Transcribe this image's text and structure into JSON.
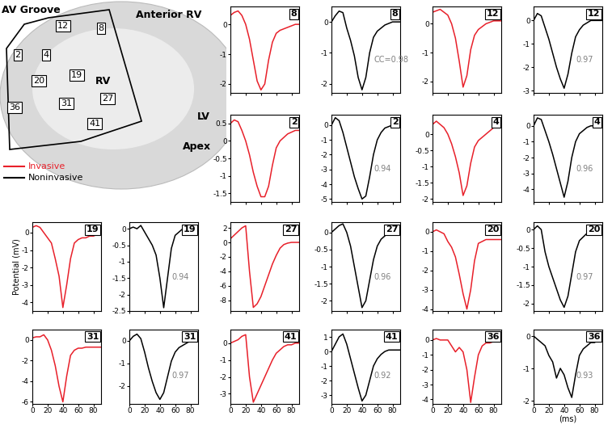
{
  "diagram": {
    "labels": [
      "AV Groove",
      "Anterior RV",
      "RV",
      "LV",
      "Apex"
    ],
    "electrodes": [
      "12",
      "8",
      "2",
      "4",
      "20",
      "19",
      "36",
      "31",
      "27",
      "41"
    ],
    "legend": [
      {
        "name": "Invasive",
        "color": "#e8202a"
      },
      {
        "name": "Noninvasive",
        "color": "#000000"
      }
    ]
  },
  "chart_data": [
    {
      "type": "line",
      "title": "8",
      "color": "#e8202a",
      "tick_labels": "y",
      "xlim": [
        0,
        90
      ],
      "xticks": [
        0,
        20,
        40,
        60,
        80
      ],
      "ylim": [
        -2.3,
        0.6
      ],
      "yticks": [
        0,
        -1,
        -2
      ],
      "x": [
        0,
        5,
        10,
        15,
        20,
        25,
        30,
        35,
        40,
        45,
        50,
        55,
        60,
        65,
        70,
        75,
        80,
        85,
        90
      ],
      "values": [
        0.3,
        0.4,
        0.45,
        0.3,
        0.0,
        -0.5,
        -1.2,
        -1.9,
        -2.2,
        -2.0,
        -1.2,
        -0.6,
        -0.3,
        -0.2,
        -0.15,
        -0.1,
        -0.05,
        0.0,
        0.0
      ]
    },
    {
      "type": "line",
      "title": "8",
      "color": "#000000",
      "tick_labels": "y",
      "annotation": "CC=0.98",
      "xlim": [
        0,
        90
      ],
      "xticks": [
        0,
        20,
        40,
        60,
        80
      ],
      "ylim": [
        -2.3,
        0.5
      ],
      "yticks": [
        0,
        -1,
        -2
      ],
      "x": [
        0,
        5,
        10,
        15,
        20,
        25,
        30,
        35,
        40,
        45,
        50,
        55,
        60,
        65,
        70,
        75,
        80,
        85,
        90
      ],
      "values": [
        0.0,
        0.2,
        0.35,
        0.3,
        -0.2,
        -0.6,
        -1.1,
        -1.8,
        -2.2,
        -1.8,
        -1.0,
        -0.5,
        -0.3,
        -0.2,
        -0.1,
        -0.05,
        0.0,
        0.0,
        0.0
      ]
    },
    {
      "type": "line",
      "title": "12",
      "color": "#e8202a",
      "tick_labels": "y",
      "xlim": [
        0,
        90
      ],
      "xticks": [
        0,
        20,
        40,
        60,
        80
      ],
      "ylim": [
        -2.4,
        0.6
      ],
      "yticks": [
        0,
        -1,
        -2
      ],
      "x": [
        0,
        5,
        10,
        15,
        20,
        25,
        30,
        35,
        40,
        45,
        50,
        55,
        60,
        65,
        70,
        75,
        80,
        85,
        90
      ],
      "values": [
        0.4,
        0.45,
        0.5,
        0.4,
        0.3,
        0.0,
        -0.5,
        -1.3,
        -2.2,
        -1.8,
        -0.9,
        -0.4,
        -0.2,
        -0.1,
        0.0,
        0.05,
        0.1,
        0.1,
        0.1
      ]
    },
    {
      "type": "line",
      "title": "12",
      "color": "#000000",
      "tick_labels": "y",
      "annotation": "0.97",
      "xlim": [
        0,
        90
      ],
      "xticks": [
        0,
        20,
        40,
        60,
        80
      ],
      "ylim": [
        -3.1,
        0.6
      ],
      "yticks": [
        0,
        -1,
        -2,
        -3
      ],
      "x": [
        0,
        5,
        10,
        15,
        20,
        25,
        30,
        35,
        40,
        45,
        50,
        55,
        60,
        65,
        70,
        75,
        80,
        85,
        90
      ],
      "values": [
        0.0,
        0.3,
        0.2,
        -0.3,
        -0.8,
        -1.4,
        -2.0,
        -2.5,
        -2.9,
        -2.3,
        -1.4,
        -0.7,
        -0.4,
        -0.2,
        -0.1,
        0.0,
        0.0,
        0.0,
        0.0
      ]
    },
    {
      "type": "line",
      "title": "2",
      "color": "#e8202a",
      "tick_labels": "y",
      "xlim": [
        0,
        90
      ],
      "xticks": [
        0,
        20,
        40,
        60,
        80
      ],
      "ylim": [
        -1.75,
        0.75
      ],
      "yticks": [
        0.5,
        0,
        -0.5,
        -1,
        -1.5
      ],
      "x": [
        0,
        5,
        10,
        15,
        20,
        25,
        30,
        35,
        40,
        45,
        50,
        55,
        60,
        65,
        70,
        75,
        80,
        85,
        90
      ],
      "values": [
        0.5,
        0.6,
        0.55,
        0.3,
        0.0,
        -0.4,
        -0.9,
        -1.3,
        -1.6,
        -1.6,
        -1.3,
        -0.7,
        -0.2,
        0.0,
        0.1,
        0.2,
        0.25,
        0.3,
        0.3
      ]
    },
    {
      "type": "line",
      "title": "2",
      "color": "#000000",
      "tick_labels": "y",
      "annotation": "0.94",
      "xlim": [
        0,
        90
      ],
      "xticks": [
        0,
        20,
        40,
        60,
        80
      ],
      "ylim": [
        -5.2,
        0.7
      ],
      "yticks": [
        0,
        -1,
        -2,
        -3,
        -4,
        -5
      ],
      "x": [
        0,
        5,
        10,
        15,
        20,
        25,
        30,
        35,
        40,
        45,
        50,
        55,
        60,
        65,
        70,
        75,
        80,
        85,
        90
      ],
      "values": [
        0.0,
        0.5,
        0.3,
        -0.5,
        -1.5,
        -2.5,
        -3.5,
        -4.3,
        -5.0,
        -4.8,
        -3.5,
        -2.0,
        -1.0,
        -0.5,
        -0.2,
        -0.1,
        0.0,
        0.0,
        0.0
      ]
    },
    {
      "type": "line",
      "title": "4",
      "color": "#e8202a",
      "tick_labels": "y",
      "xlim": [
        0,
        90
      ],
      "xticks": [
        0,
        20,
        40,
        60,
        80
      ],
      "ylim": [
        -2.1,
        0.6
      ],
      "yticks": [
        0,
        -0.5,
        -1,
        -1.5,
        -2
      ],
      "x": [
        0,
        5,
        10,
        15,
        20,
        25,
        30,
        35,
        40,
        45,
        50,
        55,
        60,
        65,
        70,
        75,
        80,
        85,
        90
      ],
      "values": [
        0.3,
        0.4,
        0.3,
        0.2,
        0.0,
        -0.3,
        -0.7,
        -1.2,
        -1.9,
        -1.6,
        -0.9,
        -0.4,
        -0.2,
        -0.1,
        0.0,
        0.1,
        0.2,
        0.3,
        0.3
      ]
    },
    {
      "type": "line",
      "title": "4",
      "color": "#000000",
      "tick_labels": "y",
      "annotation": "0.96",
      "xlim": [
        0,
        90
      ],
      "xticks": [
        0,
        20,
        40,
        60,
        80
      ],
      "ylim": [
        -4.8,
        0.7
      ],
      "yticks": [
        0,
        -1,
        -2,
        -3,
        -4
      ],
      "x": [
        0,
        5,
        10,
        15,
        20,
        25,
        30,
        35,
        40,
        45,
        50,
        55,
        60,
        65,
        70,
        75,
        80,
        85,
        90
      ],
      "values": [
        0.0,
        0.5,
        0.4,
        -0.3,
        -1.0,
        -1.8,
        -2.7,
        -3.6,
        -4.5,
        -3.5,
        -2.0,
        -1.0,
        -0.5,
        -0.3,
        -0.1,
        0.0,
        0.0,
        0.0,
        0.0
      ]
    },
    {
      "type": "line",
      "title": "19",
      "color": "#e8202a",
      "tick_labels": "y",
      "ylabel": "Potential (mV)",
      "xlim": [
        0,
        90
      ],
      "xticks": [
        0,
        20,
        40,
        60,
        80
      ],
      "ylim": [
        -4.5,
        0.6
      ],
      "yticks": [
        0,
        -1,
        -2,
        -3,
        -4
      ],
      "x": [
        0,
        5,
        10,
        15,
        20,
        25,
        30,
        35,
        40,
        45,
        50,
        55,
        60,
        65,
        70,
        75,
        80,
        85,
        90
      ],
      "values": [
        0.3,
        0.4,
        0.3,
        0.0,
        -0.3,
        -0.6,
        -1.5,
        -2.5,
        -4.3,
        -3.0,
        -1.5,
        -0.6,
        -0.4,
        -0.3,
        -0.3,
        -0.2,
        -0.2,
        -0.1,
        -0.1
      ]
    },
    {
      "type": "line",
      "title": "19",
      "color": "#000000",
      "tick_labels": "y",
      "annotation": "0.94",
      "xlim": [
        0,
        90
      ],
      "xticks": [
        0,
        20,
        40,
        60,
        80
      ],
      "ylim": [
        -2.5,
        0.2
      ],
      "yticks": [
        0,
        -0.5,
        -1,
        -1.5,
        -2,
        -2.5
      ],
      "x": [
        0,
        5,
        10,
        15,
        20,
        25,
        30,
        35,
        40,
        45,
        50,
        55,
        60,
        65,
        70,
        75,
        80,
        85,
        90
      ],
      "values": [
        0.0,
        0.05,
        0.0,
        0.1,
        -0.1,
        -0.3,
        -0.5,
        -0.8,
        -1.5,
        -2.4,
        -1.5,
        -0.6,
        -0.2,
        -0.1,
        0.0,
        0.0,
        0.0,
        0.0,
        0.0
      ]
    },
    {
      "type": "line",
      "title": "27",
      "color": "#e8202a",
      "tick_labels": "y",
      "xlim": [
        0,
        90
      ],
      "xticks": [
        0,
        20,
        40,
        60,
        80
      ],
      "ylim": [
        -9.5,
        2.8
      ],
      "yticks": [
        2,
        0,
        -2,
        -4,
        -6,
        -8
      ],
      "x": [
        0,
        5,
        10,
        15,
        20,
        25,
        30,
        35,
        40,
        45,
        50,
        55,
        60,
        65,
        70,
        75,
        80,
        85,
        90
      ],
      "values": [
        0.5,
        1.0,
        1.5,
        2.0,
        2.3,
        -4.0,
        -9.0,
        -8.5,
        -7.5,
        -6.0,
        -4.5,
        -3.0,
        -1.8,
        -0.8,
        -0.3,
        -0.1,
        0.0,
        0.0,
        0.0
      ]
    },
    {
      "type": "line",
      "title": "27",
      "color": "#000000",
      "tick_labels": "y",
      "annotation": "0.96",
      "xlim": [
        0,
        90
      ],
      "xticks": [
        0,
        20,
        40,
        60,
        80
      ],
      "ylim": [
        -2.3,
        0.3
      ],
      "yticks": [
        0,
        -0.5,
        -1,
        -1.5,
        -2
      ],
      "x": [
        0,
        5,
        10,
        15,
        20,
        25,
        30,
        35,
        40,
        45,
        50,
        55,
        60,
        65,
        70,
        75,
        80,
        85,
        90
      ],
      "values": [
        0.0,
        0.1,
        0.2,
        0.25,
        0.0,
        -0.4,
        -1.0,
        -1.6,
        -2.2,
        -2.0,
        -1.4,
        -0.8,
        -0.4,
        -0.2,
        -0.1,
        0.0,
        0.0,
        0.0,
        0.0
      ]
    },
    {
      "type": "line",
      "title": "20",
      "color": "#e8202a",
      "tick_labels": "y",
      "xlim": [
        0,
        90
      ],
      "xticks": [
        0,
        20,
        40,
        60,
        80
      ],
      "ylim": [
        -4.1,
        0.5
      ],
      "yticks": [
        0,
        -1,
        -2,
        -3,
        -4
      ],
      "x": [
        0,
        5,
        10,
        15,
        20,
        25,
        30,
        35,
        40,
        45,
        50,
        55,
        60,
        65,
        70,
        75,
        80,
        85,
        90
      ],
      "values": [
        0.0,
        0.1,
        0.0,
        -0.1,
        -0.5,
        -0.8,
        -1.3,
        -2.2,
        -3.2,
        -4.0,
        -3.0,
        -1.5,
        -0.6,
        -0.5,
        -0.4,
        -0.4,
        -0.4,
        -0.4,
        -0.4
      ]
    },
    {
      "type": "line",
      "title": "20",
      "color": "#000000",
      "tick_labels": "y",
      "annotation": "0.97",
      "xlim": [
        0,
        90
      ],
      "xticks": [
        0,
        20,
        40,
        60,
        80
      ],
      "ylim": [
        -2.2,
        0.2
      ],
      "yticks": [
        0,
        -0.5,
        -1,
        -1.5,
        -2
      ],
      "x": [
        0,
        5,
        10,
        15,
        20,
        25,
        30,
        35,
        40,
        45,
        50,
        55,
        60,
        65,
        70,
        75,
        80,
        85,
        90
      ],
      "values": [
        0.0,
        0.1,
        0.0,
        -0.6,
        -1.0,
        -1.3,
        -1.6,
        -1.9,
        -2.1,
        -1.8,
        -1.2,
        -0.6,
        -0.3,
        -0.2,
        -0.1,
        -0.05,
        0.0,
        0.0,
        0.0
      ]
    },
    {
      "type": "line",
      "title": "31",
      "color": "#e8202a",
      "tick_labels": true,
      "xlim": [
        0,
        90
      ],
      "xticks": [
        0,
        20,
        40,
        60,
        80
      ],
      "ylim": [
        -6.2,
        1
      ],
      "yticks": [
        0,
        -2,
        -4,
        -6
      ],
      "x": [
        0,
        5,
        10,
        15,
        20,
        25,
        30,
        35,
        40,
        45,
        50,
        55,
        60,
        65,
        70,
        75,
        80,
        85,
        90
      ],
      "values": [
        0.2,
        0.3,
        0.3,
        0.5,
        0.0,
        -1.0,
        -2.5,
        -4.5,
        -6.0,
        -3.5,
        -1.5,
        -1.0,
        -0.8,
        -0.8,
        -0.7,
        -0.7,
        -0.7,
        -0.7,
        -0.7
      ]
    },
    {
      "type": "line",
      "title": "31",
      "color": "#000000",
      "tick_labels": true,
      "annotation": "0.97",
      "xlim": [
        0,
        90
      ],
      "xticks": [
        0,
        20,
        40,
        60,
        80
      ],
      "ylim": [
        -2.8,
        0.5
      ],
      "yticks": [
        0,
        -1,
        -2
      ],
      "x": [
        0,
        5,
        10,
        15,
        20,
        25,
        30,
        35,
        40,
        45,
        50,
        55,
        60,
        65,
        70,
        75,
        80,
        85,
        90
      ],
      "values": [
        0.0,
        0.2,
        0.3,
        0.1,
        -0.5,
        -1.2,
        -1.8,
        -2.3,
        -2.6,
        -2.3,
        -1.6,
        -0.9,
        -0.5,
        -0.3,
        -0.2,
        -0.1,
        0.0,
        0.0,
        0.0
      ]
    },
    {
      "type": "line",
      "title": "41",
      "color": "#e8202a",
      "tick_labels": true,
      "xlim": [
        0,
        90
      ],
      "xticks": [
        0,
        20,
        40,
        60,
        80
      ],
      "ylim": [
        -3.6,
        0.8
      ],
      "yticks": [
        0,
        -1,
        -2,
        -3
      ],
      "x": [
        0,
        5,
        10,
        15,
        20,
        25,
        30,
        35,
        40,
        45,
        50,
        55,
        60,
        65,
        70,
        75,
        80,
        85,
        90
      ],
      "values": [
        0.0,
        0.1,
        0.2,
        0.4,
        0.5,
        -2.0,
        -3.5,
        -3.0,
        -2.5,
        -2.0,
        -1.5,
        -1.0,
        -0.6,
        -0.4,
        -0.2,
        -0.1,
        -0.1,
        0.0,
        0.0
      ]
    },
    {
      "type": "line",
      "title": "41",
      "color": "#000000",
      "tick_labels": true,
      "annotation": "0.92",
      "xlim": [
        0,
        90
      ],
      "xticks": [
        0,
        20,
        40,
        60,
        80
      ],
      "ylim": [
        -3.6,
        1.5
      ],
      "yticks": [
        1,
        0,
        -1,
        -2,
        -3
      ],
      "x": [
        0,
        5,
        10,
        15,
        20,
        25,
        30,
        35,
        40,
        45,
        50,
        55,
        60,
        65,
        70,
        75,
        80,
        85,
        90
      ],
      "values": [
        0.0,
        0.5,
        1.0,
        1.2,
        0.5,
        -0.5,
        -1.5,
        -2.5,
        -3.4,
        -3.0,
        -2.0,
        -1.0,
        -0.5,
        -0.2,
        0.0,
        0.1,
        0.1,
        0.1,
        0.1
      ]
    },
    {
      "type": "line",
      "title": "36",
      "color": "#e8202a",
      "tick_labels": true,
      "xlim": [
        0,
        90
      ],
      "xticks": [
        0,
        20,
        40,
        60,
        80
      ],
      "ylim": [
        -4.3,
        0.7
      ],
      "yticks": [
        0,
        -1,
        -2,
        -3,
        -4
      ],
      "x": [
        0,
        5,
        10,
        15,
        20,
        25,
        30,
        35,
        40,
        45,
        50,
        55,
        60,
        65,
        70,
        75,
        80,
        85,
        90
      ],
      "values": [
        0.0,
        0.1,
        0.0,
        0.0,
        0.0,
        -0.4,
        -0.8,
        -0.5,
        -0.8,
        -2.0,
        -4.2,
        -2.5,
        -1.0,
        -0.4,
        -0.2,
        -0.2,
        -0.1,
        -0.1,
        -0.1
      ]
    },
    {
      "type": "line",
      "title": "36",
      "color": "#000000",
      "tick_labels": true,
      "annotation": "0.93",
      "xlabel": "(ms)",
      "xlim": [
        0,
        90
      ],
      "xticks": [
        0,
        20,
        40,
        60,
        80
      ],
      "ylim": [
        -2.1,
        0.2
      ],
      "yticks": [
        0,
        -1,
        -2
      ],
      "x": [
        0,
        5,
        10,
        15,
        20,
        25,
        30,
        35,
        40,
        45,
        50,
        55,
        60,
        65,
        70,
        75,
        80,
        85,
        90
      ],
      "values": [
        0.0,
        -0.1,
        -0.2,
        -0.3,
        -0.6,
        -0.8,
        -1.3,
        -1.0,
        -1.2,
        -1.6,
        -1.9,
        -1.2,
        -0.6,
        -0.4,
        -0.3,
        -0.2,
        -0.2,
        -0.1,
        -0.1
      ]
    }
  ]
}
